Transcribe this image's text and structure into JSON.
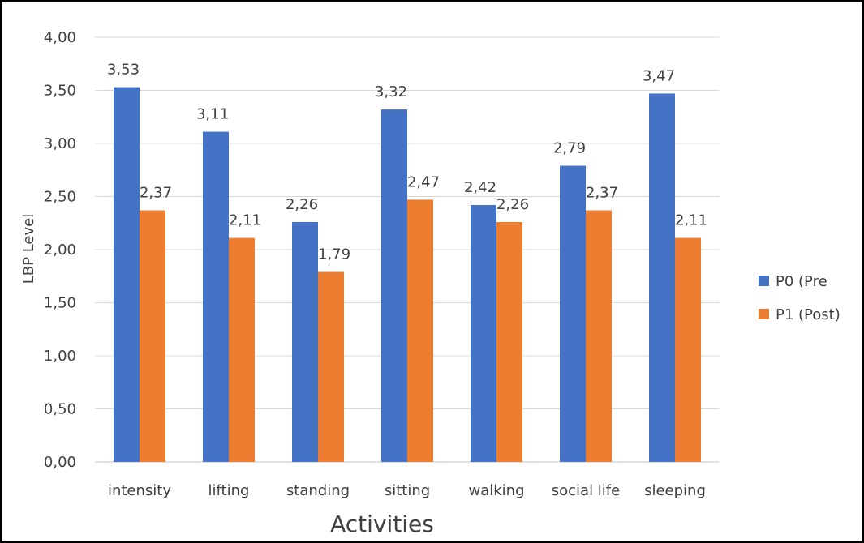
{
  "chart_data": {
    "type": "bar",
    "title": "",
    "xlabel": "Activities",
    "ylabel": "LBP Level",
    "categories": [
      "intensity",
      "lifting",
      "standing",
      "sitting",
      "walking",
      "social life",
      "sleeping"
    ],
    "series": [
      {
        "name": "P0 (Pre",
        "color": "#4472C4",
        "values": [
          3.53,
          3.11,
          2.26,
          3.32,
          2.42,
          2.79,
          3.47
        ],
        "labels": [
          "3,53",
          "3,11",
          "2,26",
          "3,32",
          "2,42",
          "2,79",
          "3,47"
        ]
      },
      {
        "name": "P1 (Post)",
        "color": "#ED7D31",
        "values": [
          2.37,
          2.11,
          1.79,
          2.47,
          2.26,
          2.37,
          2.11
        ],
        "labels": [
          "2,37",
          "2,11",
          "1,79",
          "2,47",
          "2,26",
          "2,37",
          "2,11"
        ]
      }
    ],
    "ylim": [
      0,
      4
    ],
    "yticks": [
      0,
      0.5,
      1,
      1.5,
      2,
      2.5,
      3,
      3.5,
      4
    ],
    "ytick_labels": [
      "0,00",
      "0,50",
      "1,00",
      "1,50",
      "2,00",
      "2,50",
      "3,00",
      "3,50",
      "4,00"
    ],
    "grid": true,
    "legend_position": "right",
    "colors": {
      "gridline": "#D9D9D9",
      "frame": "#000000",
      "text": "#404040"
    }
  }
}
